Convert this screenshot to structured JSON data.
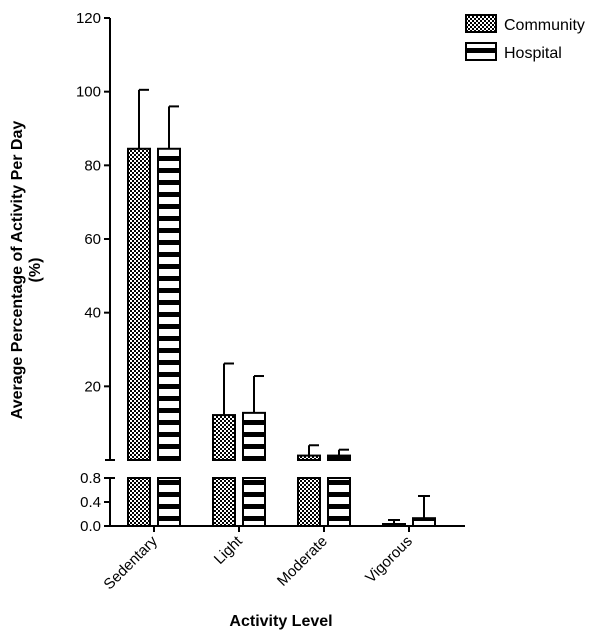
{
  "chart_data": {
    "type": "bar",
    "title": "",
    "xlabel": "Activity Level",
    "ylabel_line1": "Average Percentage of Activity Per Day",
    "ylabel_line2": "(%)",
    "categories": [
      "Sedentary",
      "Light",
      "Moderate",
      "Vigorous"
    ],
    "series": [
      {
        "name": "Community",
        "pattern": "crosshatch",
        "values": [
          84.5,
          12.2,
          1.2,
          0.03
        ],
        "error": [
          16.0,
          14.0,
          2.8,
          0.07
        ]
      },
      {
        "name": "Hospital",
        "pattern": "horizontal-stripes",
        "values": [
          84.5,
          12.8,
          1.2,
          0.13
        ],
        "error": [
          11.5,
          10.0,
          1.6,
          0.37
        ]
      }
    ],
    "y_axis": {
      "broken": true,
      "upper_segment": {
        "range": [
          0,
          120
        ],
        "ticks": [
          "120",
          "100",
          "80",
          "60",
          "40",
          "20"
        ]
      },
      "lower_segment": {
        "range": [
          0,
          0.8
        ],
        "ticks": [
          "0.8",
          "0.4",
          "0.0"
        ]
      }
    },
    "grid": false,
    "legend_position": "top-right",
    "colors": {
      "bar_fill": "#000000",
      "bar_bg": "#ffffff",
      "axis": "#000000"
    }
  }
}
